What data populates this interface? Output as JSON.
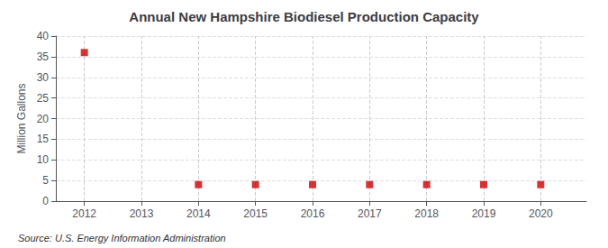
{
  "chart_data": {
    "type": "scatter",
    "title": "Annual New Hampshire Biodiesel Production Capacity",
    "ylabel": "Million Gallons",
    "source": "Source: U.S. Energy Information Administration",
    "x": [
      2012,
      2013,
      2014,
      2015,
      2016,
      2017,
      2018,
      2019,
      2020
    ],
    "values": [
      36,
      null,
      4,
      4,
      4,
      4,
      4,
      4,
      4
    ],
    "color": "#cc0000",
    "marker": "square",
    "xlim": [
      2011.5,
      2020.8
    ],
    "xticks": [
      2012,
      2013,
      2014,
      2015,
      2016,
      2017,
      2018,
      2019,
      2020
    ],
    "ylim": [
      0,
      40
    ],
    "yticks": [
      0,
      5,
      10,
      15,
      20,
      25,
      30,
      35,
      40
    ],
    "grid": true
  }
}
